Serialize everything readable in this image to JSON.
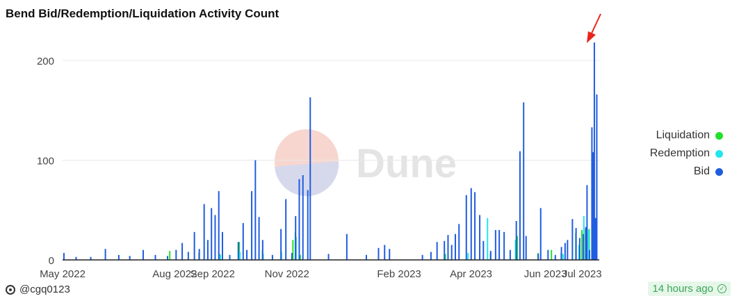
{
  "title": "Bend Bid/Redemption/Liquidation Activity Count",
  "watermark": "Dune",
  "footer": {
    "user": "@cgq0123",
    "updated": "14 hours ago"
  },
  "colors": {
    "liquidation": "#22e02a",
    "redemption": "#22e5ee",
    "bid": "#1f5ce0"
  },
  "chart_data": {
    "type": "bar",
    "x_axis": {
      "type": "date",
      "range": [
        "2022-05-01",
        "2023-07-14"
      ],
      "ticks": [
        "2022-05-01",
        "2022-08-01",
        "2022-09-01",
        "2022-11-01",
        "2023-02-01",
        "2023-04-01",
        "2023-06-01",
        "2023-07-01"
      ],
      "tick_labels": [
        "May 2022",
        "Aug 2022",
        "Sep 2022",
        "Nov 2022",
        "Feb 2023",
        "Apr 2023",
        "Jun 2023",
        "Jul 2023"
      ]
    },
    "y_axis": {
      "range": [
        0,
        230
      ],
      "ticks": [
        0,
        100,
        200
      ]
    },
    "grid": "horizontal",
    "legend": {
      "placement": "right"
    },
    "series": [
      {
        "name": "Liquidation",
        "points": [
          [
            "2022-07-27",
            9
          ],
          [
            "2022-08-20",
            7
          ],
          [
            "2022-09-06",
            6
          ],
          [
            "2022-09-22",
            18
          ],
          [
            "2022-10-11",
            10
          ],
          [
            "2022-11-05",
            20
          ],
          [
            "2022-11-07",
            28
          ],
          [
            "2022-11-11",
            5
          ],
          [
            "2023-03-10",
            6
          ],
          [
            "2023-04-16",
            7
          ],
          [
            "2023-05-08",
            24
          ],
          [
            "2023-05-25",
            7
          ],
          [
            "2023-06-05",
            10
          ],
          [
            "2023-06-13",
            7
          ],
          [
            "2023-06-25",
            27
          ],
          [
            "2023-06-30",
            30
          ],
          [
            "2023-07-03",
            31
          ],
          [
            "2023-07-06",
            31
          ],
          [
            "2023-07-09",
            5
          ]
        ]
      },
      {
        "name": "Redemption",
        "points": [
          [
            "2022-09-06",
            5
          ],
          [
            "2022-09-22",
            8
          ],
          [
            "2022-10-11",
            6
          ],
          [
            "2022-10-26",
            8
          ],
          [
            "2022-11-07",
            23
          ],
          [
            "2023-03-28",
            7
          ],
          [
            "2023-04-13",
            42
          ],
          [
            "2023-05-06",
            20
          ],
          [
            "2023-06-14",
            6
          ],
          [
            "2023-06-27",
            15
          ],
          [
            "2023-07-01",
            44
          ],
          [
            "2023-07-05",
            30
          ],
          [
            "2023-07-08",
            5
          ]
        ]
      },
      {
        "name": "Bid",
        "points": [
          [
            "2022-05-02",
            7
          ],
          [
            "2022-05-12",
            3
          ],
          [
            "2022-05-24",
            3
          ],
          [
            "2022-06-05",
            11
          ],
          [
            "2022-06-16",
            5
          ],
          [
            "2022-06-25",
            4
          ],
          [
            "2022-07-06",
            10
          ],
          [
            "2022-07-16",
            5
          ],
          [
            "2022-07-26",
            4
          ],
          [
            "2022-08-02",
            10
          ],
          [
            "2022-08-07",
            17
          ],
          [
            "2022-08-12",
            8
          ],
          [
            "2022-08-17",
            28
          ],
          [
            "2022-08-21",
            11
          ],
          [
            "2022-08-25",
            56
          ],
          [
            "2022-08-28",
            20
          ],
          [
            "2022-08-31",
            52
          ],
          [
            "2022-09-03",
            45
          ],
          [
            "2022-09-06",
            69
          ],
          [
            "2022-09-09",
            28
          ],
          [
            "2022-09-15",
            5
          ],
          [
            "2022-09-22",
            18
          ],
          [
            "2022-09-26",
            37
          ],
          [
            "2022-09-29",
            10
          ],
          [
            "2022-10-03",
            69
          ],
          [
            "2022-10-06",
            100
          ],
          [
            "2022-10-09",
            43
          ],
          [
            "2022-10-12",
            20
          ],
          [
            "2022-10-20",
            5
          ],
          [
            "2022-10-27",
            31
          ],
          [
            "2022-10-31",
            61
          ],
          [
            "2022-11-05",
            7
          ],
          [
            "2022-11-08",
            44
          ],
          [
            "2022-11-11",
            81
          ],
          [
            "2022-11-14",
            85
          ],
          [
            "2022-11-18",
            70
          ],
          [
            "2022-11-20",
            163
          ],
          [
            "2022-12-05",
            6
          ],
          [
            "2022-12-20",
            26
          ],
          [
            "2023-01-05",
            5
          ],
          [
            "2023-01-15",
            12
          ],
          [
            "2023-01-20",
            15
          ],
          [
            "2023-01-24",
            11
          ],
          [
            "2023-02-20",
            5
          ],
          [
            "2023-02-27",
            8
          ],
          [
            "2023-03-04",
            18
          ],
          [
            "2023-03-10",
            19
          ],
          [
            "2023-03-13",
            25
          ],
          [
            "2023-03-16",
            15
          ],
          [
            "2023-03-19",
            26
          ],
          [
            "2023-03-22",
            36
          ],
          [
            "2023-03-28",
            65
          ],
          [
            "2023-04-01",
            72
          ],
          [
            "2023-04-04",
            68
          ],
          [
            "2023-04-08",
            45
          ],
          [
            "2023-04-11",
            19
          ],
          [
            "2023-04-17",
            9
          ],
          [
            "2023-04-21",
            30
          ],
          [
            "2023-04-24",
            30
          ],
          [
            "2023-04-28",
            28
          ],
          [
            "2023-05-03",
            10
          ],
          [
            "2023-05-08",
            39
          ],
          [
            "2023-05-11",
            109
          ],
          [
            "2023-05-14",
            158
          ],
          [
            "2023-05-16",
            24
          ],
          [
            "2023-05-26",
            6
          ],
          [
            "2023-05-28",
            52
          ],
          [
            "2023-06-03",
            10
          ],
          [
            "2023-06-09",
            5
          ],
          [
            "2023-06-14",
            13
          ],
          [
            "2023-06-17",
            17
          ],
          [
            "2023-06-19",
            20
          ],
          [
            "2023-06-23",
            41
          ],
          [
            "2023-06-26",
            32
          ],
          [
            "2023-06-29",
            22
          ],
          [
            "2023-07-02",
            26
          ],
          [
            "2023-07-04",
            33
          ],
          [
            "2023-07-05",
            75
          ],
          [
            "2023-07-07",
            10
          ],
          [
            "2023-07-09",
            133
          ],
          [
            "2023-07-10",
            108
          ],
          [
            "2023-07-11",
            218
          ],
          [
            "2023-07-12",
            42
          ],
          [
            "2023-07-13",
            166
          ]
        ]
      }
    ]
  }
}
